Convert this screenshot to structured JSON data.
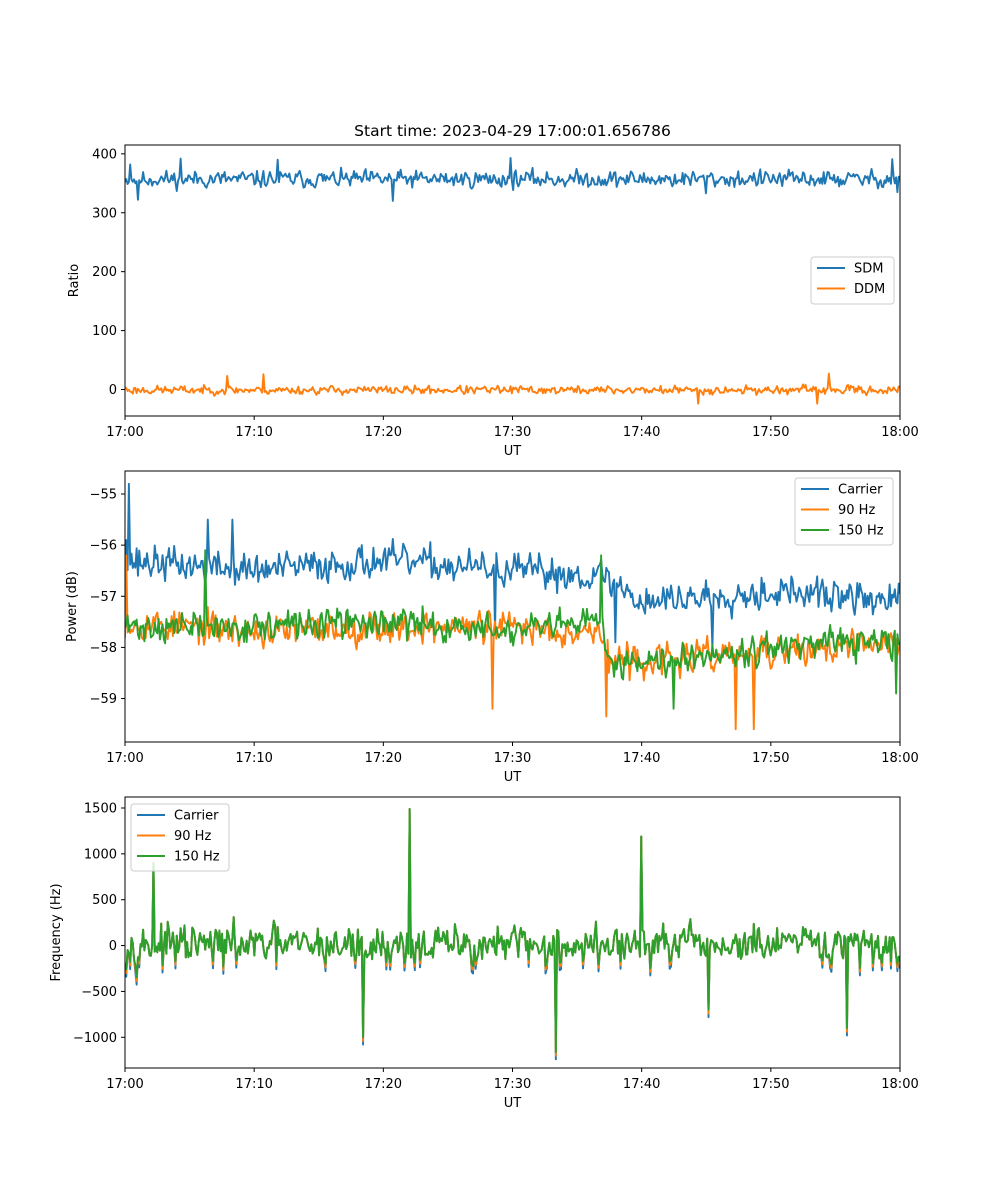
{
  "figure": {
    "title": "Start time: 2023-04-29 17:00:01.656786"
  },
  "colors": {
    "blue": "#1f77b4",
    "orange": "#ff7f0e",
    "green": "#2ca02c"
  },
  "chart_data": [
    {
      "type": "line",
      "title": "Start time: 2023-04-29 17:00:01.656786",
      "xlabel": "UT",
      "ylabel": "Ratio",
      "x_range_minutes": [
        0,
        60
      ],
      "x_ticks": [
        "17:00",
        "17:10",
        "17:20",
        "17:30",
        "17:40",
        "17:50",
        "18:00"
      ],
      "ylim": [
        -45,
        415
      ],
      "y_ticks": [
        0,
        100,
        200,
        300,
        400
      ],
      "y_tick_labels": [
        "0",
        "100",
        "200",
        "300",
        "400"
      ],
      "legend_position": "center-right",
      "series": [
        {
          "name": "SDM",
          "color": "#1f77b4",
          "mean": 357,
          "amplitude": 22,
          "seed": 11,
          "anchors": [
            [
              0,
              352
            ],
            [
              0.4,
              382
            ],
            [
              1.0,
              322
            ],
            [
              4.3,
              392
            ],
            [
              11.8,
              390
            ],
            [
              20.7,
              320
            ],
            [
              29.8,
              393
            ],
            [
              45.0,
              333
            ],
            [
              59.4,
              391
            ],
            [
              59.8,
              335
            ]
          ]
        },
        {
          "name": "DDM",
          "color": "#ff7f0e",
          "mean": -1,
          "amplitude": 11,
          "seed": 23,
          "anchors": [
            [
              0,
              3
            ],
            [
              7.9,
              23
            ],
            [
              10.7,
              26
            ],
            [
              44.4,
              -24
            ],
            [
              53.6,
              -24
            ],
            [
              54.5,
              27
            ]
          ]
        }
      ]
    },
    {
      "type": "line",
      "xlabel": "UT",
      "ylabel": "Power (dB)",
      "x_range_minutes": [
        0,
        60
      ],
      "x_ticks": [
        "17:00",
        "17:10",
        "17:20",
        "17:30",
        "17:40",
        "17:50",
        "18:00"
      ],
      "ylim": [
        -59.85,
        -54.55
      ],
      "y_ticks": [
        -59,
        -58,
        -57,
        -56,
        -55
      ],
      "y_tick_labels": [
        "−59",
        "−58",
        "−57",
        "−56",
        "−55"
      ],
      "legend_position": "top-right",
      "series": [
        {
          "name": "Carrier",
          "color": "#1f77b4",
          "amplitude": 0.5,
          "seed": 37,
          "trend": [
            [
              0,
              -56.3
            ],
            [
              10,
              -56.5
            ],
            [
              20,
              -56.3
            ],
            [
              30,
              -56.5
            ],
            [
              37,
              -56.6
            ],
            [
              40,
              -57.1
            ],
            [
              50,
              -56.9
            ],
            [
              60,
              -57.1
            ]
          ],
          "anchors": [
            [
              0.1,
              -55.9
            ],
            [
              0.3,
              -54.8
            ],
            [
              1.0,
              -56.6
            ],
            [
              6.4,
              -55.5
            ],
            [
              8.3,
              -55.5
            ],
            [
              28.6,
              -57.7
            ],
            [
              38.0,
              -57.9
            ],
            [
              45.5,
              -58.0
            ]
          ]
        },
        {
          "name": "90 Hz",
          "color": "#ff7f0e",
          "amplitude": 0.48,
          "seed": 53,
          "trend": [
            [
              0,
              -57.5
            ],
            [
              10,
              -57.7
            ],
            [
              20,
              -57.6
            ],
            [
              30,
              -57.6
            ],
            [
              37,
              -57.7
            ],
            [
              37.5,
              -58.3
            ],
            [
              50,
              -58.1
            ],
            [
              60,
              -57.9
            ]
          ],
          "anchors": [
            [
              0.1,
              -56.2
            ],
            [
              28.4,
              -59.2
            ],
            [
              37.3,
              -59.35
            ],
            [
              47.3,
              -59.6
            ],
            [
              48.7,
              -59.6
            ]
          ]
        },
        {
          "name": "150 Hz",
          "color": "#2ca02c",
          "amplitude": 0.45,
          "seed": 71,
          "trend": [
            [
              0,
              -57.6
            ],
            [
              10,
              -57.6
            ],
            [
              20,
              -57.5
            ],
            [
              30,
              -57.7
            ],
            [
              37,
              -57.5
            ],
            [
              37.5,
              -58.3
            ],
            [
              50,
              -58.0
            ],
            [
              60,
              -57.9
            ]
          ],
          "anchors": [
            [
              6.2,
              -56.1
            ],
            [
              36.9,
              -56.2
            ],
            [
              42.5,
              -59.2
            ],
            [
              59.7,
              -58.9
            ]
          ]
        }
      ]
    },
    {
      "type": "line",
      "xlabel": "UT",
      "ylabel": "Frequency (Hz)",
      "x_range_minutes": [
        0,
        60
      ],
      "x_ticks": [
        "17:00",
        "17:10",
        "17:20",
        "17:30",
        "17:40",
        "17:50",
        "18:00"
      ],
      "ylim": [
        -1335,
        1620
      ],
      "y_ticks": [
        -1000,
        -500,
        0,
        500,
        1000,
        1500
      ],
      "y_tick_labels": [
        "−1000",
        "−500",
        "0",
        "500",
        "1000",
        "1500"
      ],
      "legend_position": "top-left",
      "base_mean": 0,
      "base_amplitude": 330,
      "base_seed": 97,
      "base_anchors": [
        [
          2.2,
          900
        ],
        [
          18.4,
          -1000
        ],
        [
          22.0,
          1490
        ],
        [
          33.4,
          -1160
        ],
        [
          40.0,
          1190
        ],
        [
          45.2,
          -700
        ],
        [
          55.9,
          -900
        ]
      ],
      "series": [
        {
          "name": "Carrier",
          "color": "#1f77b4",
          "offset": 0,
          "neg_extra": -80
        },
        {
          "name": "90 Hz",
          "color": "#ff7f0e",
          "offset": 0,
          "neg_extra": -40
        },
        {
          "name": "150 Hz",
          "color": "#2ca02c",
          "offset": 0,
          "neg_extra": 0
        }
      ]
    }
  ]
}
